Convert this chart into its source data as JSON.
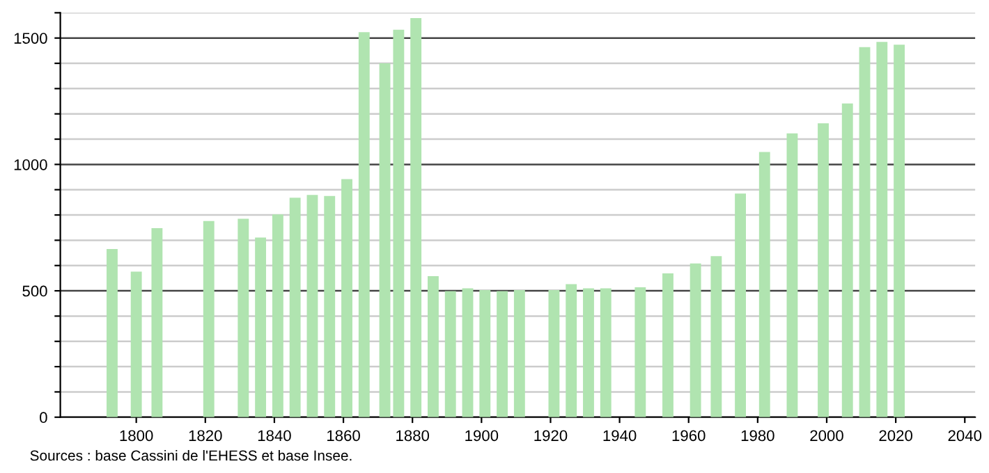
{
  "chart_data": {
    "type": "bar",
    "x": [
      1793,
      1800,
      1806,
      1821,
      1831,
      1836,
      1841,
      1846,
      1851,
      1856,
      1861,
      1866,
      1872,
      1876,
      1881,
      1886,
      1891,
      1896,
      1901,
      1906,
      1911,
      1921,
      1926,
      1931,
      1936,
      1946,
      1954,
      1962,
      1968,
      1975,
      1982,
      1990,
      1999,
      2006,
      2011,
      2016,
      2021
    ],
    "values": [
      665,
      576,
      748,
      776,
      785,
      711,
      802,
      868,
      879,
      875,
      942,
      1523,
      1400,
      1533,
      1579,
      558,
      499,
      510,
      503,
      499,
      503,
      503,
      526,
      510,
      510,
      514,
      569,
      608,
      637,
      885,
      1049,
      1123,
      1163,
      1241,
      1464,
      1485,
      1474
    ],
    "color": "#b0e4b0",
    "xlim": [
      1778,
      2043
    ],
    "xticks": [
      1800,
      1820,
      1840,
      1860,
      1880,
      1900,
      1920,
      1940,
      1960,
      1980,
      2000,
      2020,
      2040
    ],
    "ylim": [
      0,
      1600
    ],
    "yticks": [
      0,
      {
        "value": 100,
        "label": null
      },
      {
        "value": 200,
        "label": null
      },
      {
        "value": 300,
        "label": null
      },
      {
        "value": 400,
        "label": null
      },
      500,
      {
        "value": 600,
        "label": null
      },
      {
        "value": 700,
        "label": null
      },
      {
        "value": 800,
        "label": null
      },
      {
        "value": 900,
        "label": null
      },
      1000,
      {
        "value": 1100,
        "label": null
      },
      {
        "value": 1200,
        "label": null
      },
      {
        "value": 1300,
        "label": null
      },
      {
        "value": 1400,
        "label": null
      },
      1500,
      {
        "value": 1600,
        "label": null
      }
    ],
    "grid": "y",
    "annotations": [
      "Sources : base Cassini de l'EHESS et base Insee."
    ]
  }
}
